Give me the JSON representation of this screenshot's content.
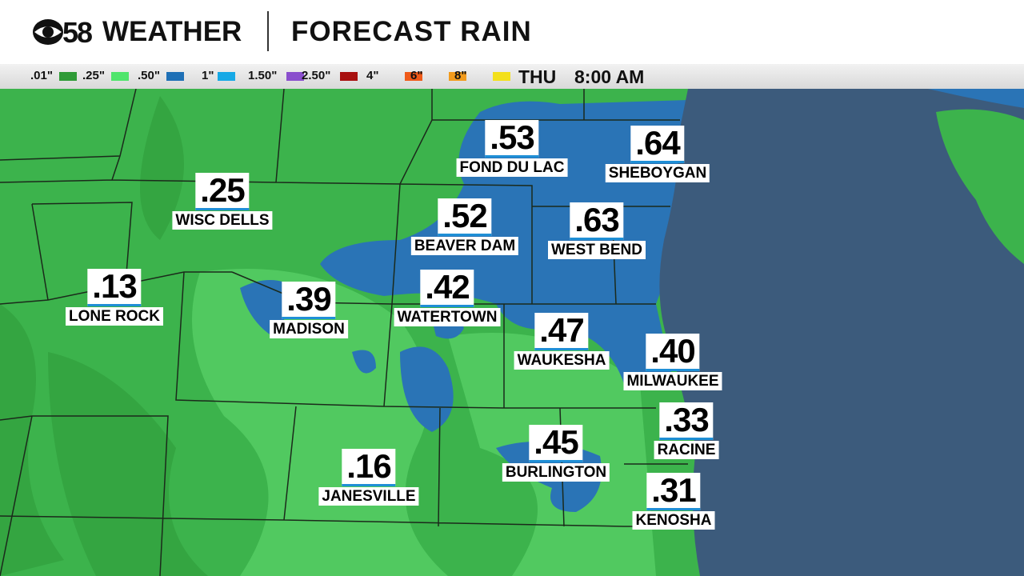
{
  "header": {
    "logo_number": "58",
    "brand": "WEATHER",
    "title": "FORECAST RAIN"
  },
  "legend": [
    {
      "label": ".01\"",
      "color": "#2f9b37"
    },
    {
      "label": ".25\"",
      "color": "#4fe56c"
    },
    {
      "label": ".50\"",
      "color": "#1f70b6"
    },
    {
      "label": "1\"",
      "color": "#17a9e6"
    },
    {
      "label": "1.50\"",
      "color": "#8a4fcd"
    },
    {
      "label": "2.50\"",
      "color": "#a8100f"
    },
    {
      "label": "4\"",
      "color": "#ef5a19"
    },
    {
      "label": "6\"",
      "color": "#f29b1c"
    },
    {
      "label": "8\"",
      "color": "#f3e01b"
    }
  ],
  "time": {
    "day": "THU",
    "clock": "8:00 AM"
  },
  "cities": [
    {
      "name": "FOND DU LAC",
      "value": ".53"
    },
    {
      "name": "SHEBOYGAN",
      "value": ".64"
    },
    {
      "name": "WISC DELLS",
      "value": ".25"
    },
    {
      "name": "BEAVER DAM",
      "value": ".52"
    },
    {
      "name": "WEST BEND",
      "value": ".63"
    },
    {
      "name": "LONE ROCK",
      "value": ".13"
    },
    {
      "name": "MADISON",
      "value": ".39"
    },
    {
      "name": "WATERTOWN",
      "value": ".42"
    },
    {
      "name": "WAUKESHA",
      "value": ".47"
    },
    {
      "name": "MILWAUKEE",
      "value": ".40"
    },
    {
      "name": "RACINE",
      "value": ".33"
    },
    {
      "name": "BURLINGTON",
      "value": ".45"
    },
    {
      "name": "JANESVILLE",
      "value": ".16"
    },
    {
      "name": "KENOSHA",
      "value": ".31"
    }
  ]
}
